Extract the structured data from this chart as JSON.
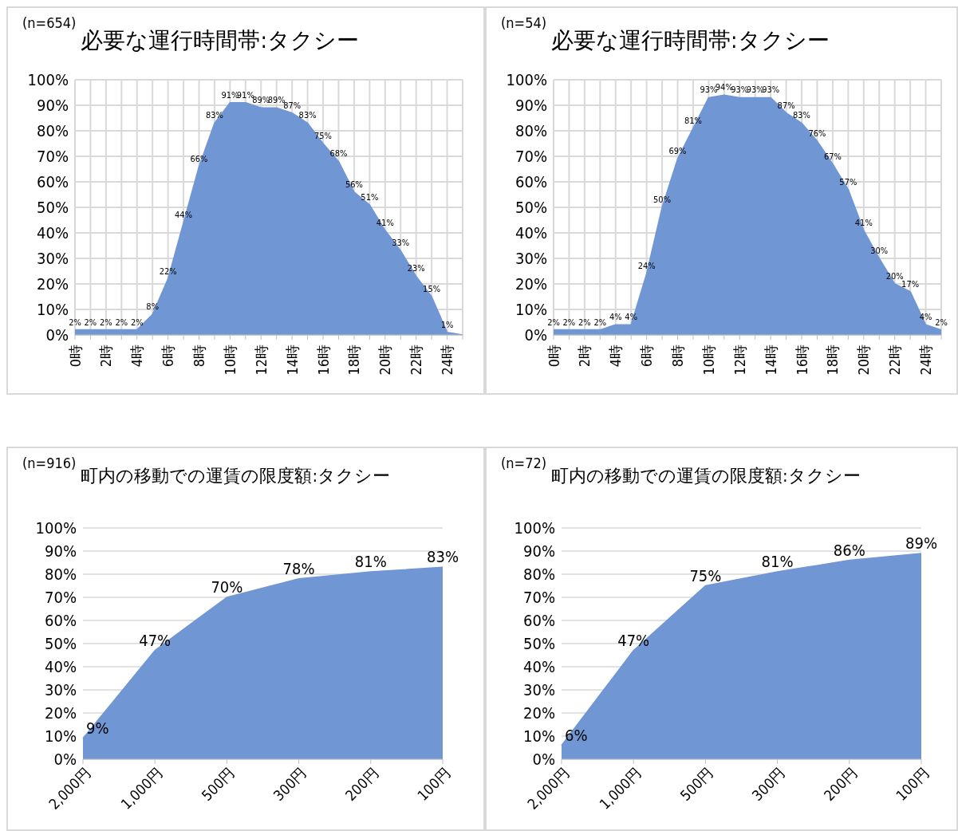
{
  "chart_data": [
    {
      "type": "area",
      "subtitle": "(n=654)",
      "title": "必要な運行時間帯:タクシー",
      "categories": [
        "0時",
        null,
        "2時",
        null,
        "4時",
        null,
        "6時",
        null,
        "8時",
        null,
        "10時",
        null,
        "12時",
        null,
        "14時",
        null,
        "16時",
        null,
        "18時",
        null,
        "20時",
        null,
        "22時",
        null,
        "24時",
        null
      ],
      "values": [
        2,
        2,
        2,
        2,
        2,
        8,
        22,
        44,
        66,
        83,
        91,
        91,
        89,
        89,
        87,
        83,
        75,
        68,
        56,
        51,
        41,
        33,
        23,
        15,
        1,
        0
      ],
      "value_labels": [
        "2%",
        "2%",
        "2%",
        "2%",
        "2%",
        "8%",
        "22%",
        "44%",
        "66%",
        "83%",
        "91%",
        "91%",
        "89%",
        "89%",
        "87%",
        "83%",
        "75%",
        "68%",
        "56%",
        "51%",
        "41%",
        "33%",
        "23%",
        "15%",
        "1%",
        null
      ],
      "color": "#7196d4",
      "ylim": [
        0,
        100
      ],
      "yticks": [
        {
          "value": 0,
          "label": "0%"
        },
        {
          "value": 10,
          "label": "10%"
        },
        {
          "value": 20,
          "label": "20%"
        },
        {
          "value": 30,
          "label": "30%"
        },
        {
          "value": 40,
          "label": "40%"
        },
        {
          "value": 50,
          "label": "50%"
        },
        {
          "value": 60,
          "label": "60%"
        },
        {
          "value": 70,
          "label": "70%"
        },
        {
          "value": 80,
          "label": "80%"
        },
        {
          "value": 90,
          "label": "90%"
        },
        {
          "value": 100,
          "label": "100%"
        }
      ],
      "grid": true
    },
    {
      "type": "area",
      "subtitle": "(n=54)",
      "title": "必要な運行時間帯:タクシー",
      "categories": [
        "0時",
        null,
        "2時",
        null,
        "4時",
        null,
        "6時",
        null,
        "8時",
        null,
        "10時",
        null,
        "12時",
        null,
        "14時",
        null,
        "16時",
        null,
        "18時",
        null,
        "20時",
        null,
        "22時",
        null,
        "24時",
        null
      ],
      "values": [
        2,
        2,
        2,
        2,
        4,
        4,
        24,
        50,
        69,
        81,
        93,
        94,
        93,
        93,
        93,
        87,
        83,
        76,
        67,
        57,
        41,
        30,
        20,
        17,
        4,
        2
      ],
      "value_labels": [
        "2%",
        "2%",
        "2%",
        "2%",
        "4%",
        "4%",
        "24%",
        "50%",
        "69%",
        "81%",
        "93%",
        "94%",
        "93%",
        "93%",
        "93%",
        "87%",
        "83%",
        "76%",
        "67%",
        "57%",
        "41%",
        "30%",
        "20%",
        "17%",
        "4%",
        "2%"
      ],
      "color": "#7196d4",
      "ylim": [
        0,
        100
      ],
      "yticks": [
        {
          "value": 0,
          "label": "0%"
        },
        {
          "value": 10,
          "label": "10%"
        },
        {
          "value": 20,
          "label": "20%"
        },
        {
          "value": 30,
          "label": "30%"
        },
        {
          "value": 40,
          "label": "40%"
        },
        {
          "value": 50,
          "label": "50%"
        },
        {
          "value": 60,
          "label": "60%"
        },
        {
          "value": 70,
          "label": "70%"
        },
        {
          "value": 80,
          "label": "80%"
        },
        {
          "value": 90,
          "label": "90%"
        },
        {
          "value": 100,
          "label": "100%"
        }
      ],
      "grid": true
    },
    {
      "type": "area",
      "subtitle": "(n=916)",
      "title": "町内の移動での運賃の限度額:タクシー",
      "categories": [
        "2,000円",
        "1,000円",
        "500円",
        "300円",
        "200円",
        "100円"
      ],
      "values": [
        9,
        47,
        70,
        78,
        81,
        83
      ],
      "value_labels": [
        "9%",
        "47%",
        "70%",
        "78%",
        "81%",
        "83%"
      ],
      "color": "#7196d4",
      "ylim": [
        0,
        100
      ],
      "yticks": [
        {
          "value": 0,
          "label": "0%"
        },
        {
          "value": 10,
          "label": "10%"
        },
        {
          "value": 20,
          "label": "20%"
        },
        {
          "value": 30,
          "label": "30%"
        },
        {
          "value": 40,
          "label": "40%"
        },
        {
          "value": 50,
          "label": "50%"
        },
        {
          "value": 60,
          "label": "60%"
        },
        {
          "value": 70,
          "label": "70%"
        },
        {
          "value": 80,
          "label": "80%"
        },
        {
          "value": 90,
          "label": "90%"
        },
        {
          "value": 100,
          "label": "100%"
        }
      ],
      "grid": "y"
    },
    {
      "type": "area",
      "subtitle": "(n=72)",
      "title": "町内の移動での運賃の限度額:タクシー",
      "categories": [
        "2,000円",
        "1,000円",
        "500円",
        "300円",
        "200円",
        "100円"
      ],
      "values": [
        6,
        47,
        75,
        81,
        86,
        89
      ],
      "value_labels": [
        "6%",
        "47%",
        "75%",
        "81%",
        "86%",
        "89%"
      ],
      "color": "#7196d4",
      "ylim": [
        0,
        100
      ],
      "yticks": [
        {
          "value": 0,
          "label": "0%"
        },
        {
          "value": 10,
          "label": "10%"
        },
        {
          "value": 20,
          "label": "20%"
        },
        {
          "value": 30,
          "label": "30%"
        },
        {
          "value": 40,
          "label": "40%"
        },
        {
          "value": 50,
          "label": "50%"
        },
        {
          "value": 60,
          "label": "60%"
        },
        {
          "value": 70,
          "label": "70%"
        },
        {
          "value": 80,
          "label": "80%"
        },
        {
          "value": 90,
          "label": "90%"
        },
        {
          "value": 100,
          "label": "100%"
        }
      ],
      "grid": "y"
    }
  ]
}
